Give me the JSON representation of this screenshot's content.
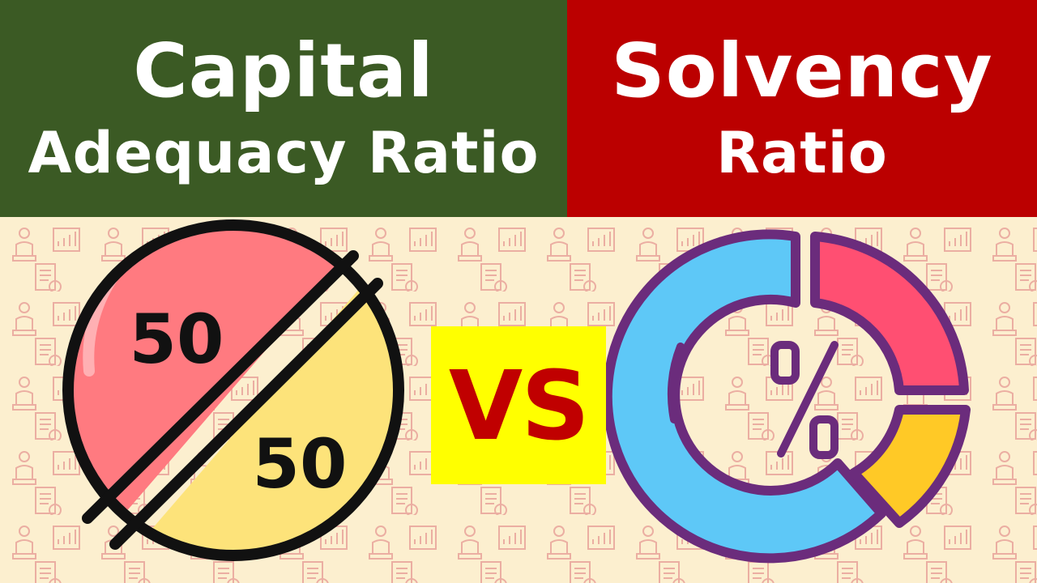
{
  "left_banner": {
    "line1": "Capital",
    "line2": "Adequacy Ratio",
    "color": "#3b5a24"
  },
  "right_banner": {
    "line1": "Solvency",
    "line2": "Ratio",
    "color": "#bb0000"
  },
  "split_circle": {
    "top_value": "50",
    "bottom_value": "50",
    "top_color": "#ff7a80",
    "bottom_color": "#fde37a"
  },
  "versus": {
    "label": "VS",
    "box_color": "#ffff00",
    "text_color": "#c00000"
  },
  "donut_chart": {
    "symbol": "%",
    "segment_colors": [
      "#5ec8f7",
      "#ff4f72",
      "#ffc926"
    ]
  },
  "background_color": "#fcefcf"
}
